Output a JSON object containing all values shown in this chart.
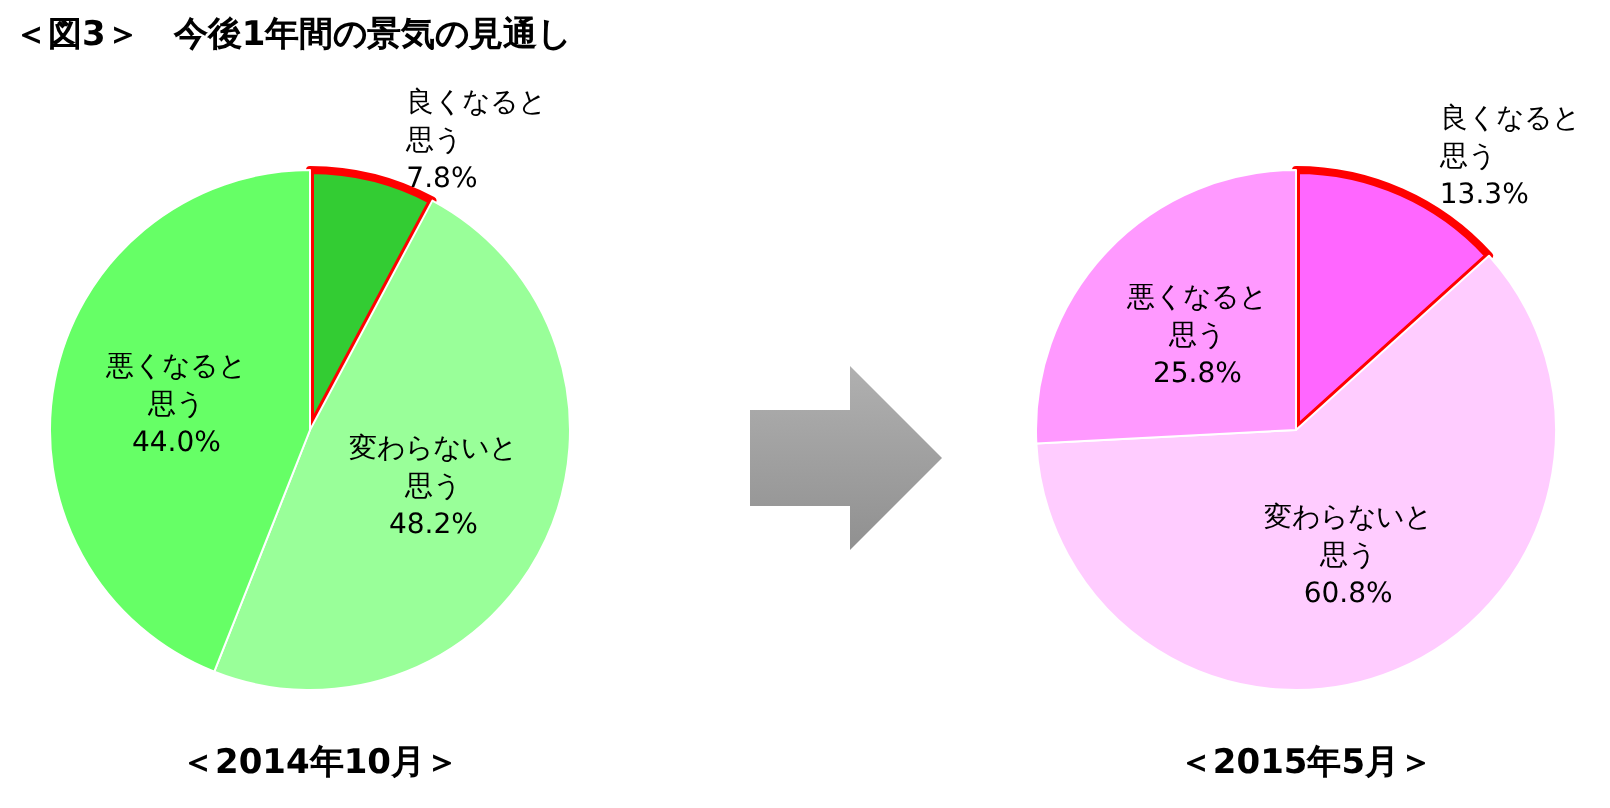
{
  "chart_data": [
    {
      "type": "pie",
      "title": "＜図3＞　今後1年間の景気の見通し",
      "xlabel": "＜2014年10月＞",
      "categories": [
        "良くなると思う",
        "変わらないと思う",
        "悪くなると思う"
      ],
      "values": [
        7.8,
        48.2,
        44.0
      ],
      "colors": [
        "#33cc33",
        "#99ff99",
        "#66ff66"
      ],
      "value_labels": [
        "7.8%",
        "48.2%",
        "44.0%"
      ]
    },
    {
      "type": "pie",
      "xlabel": "＜2015年5月＞",
      "categories": [
        "良くなると思う",
        "変わらないと思う",
        "悪くなると思う"
      ],
      "values": [
        13.3,
        60.8,
        25.8
      ],
      "colors": [
        "#ff66ff",
        "#ffccff",
        "#ff99ff"
      ],
      "value_labels": [
        "13.3%",
        "60.8%",
        "25.8%"
      ]
    }
  ]
}
